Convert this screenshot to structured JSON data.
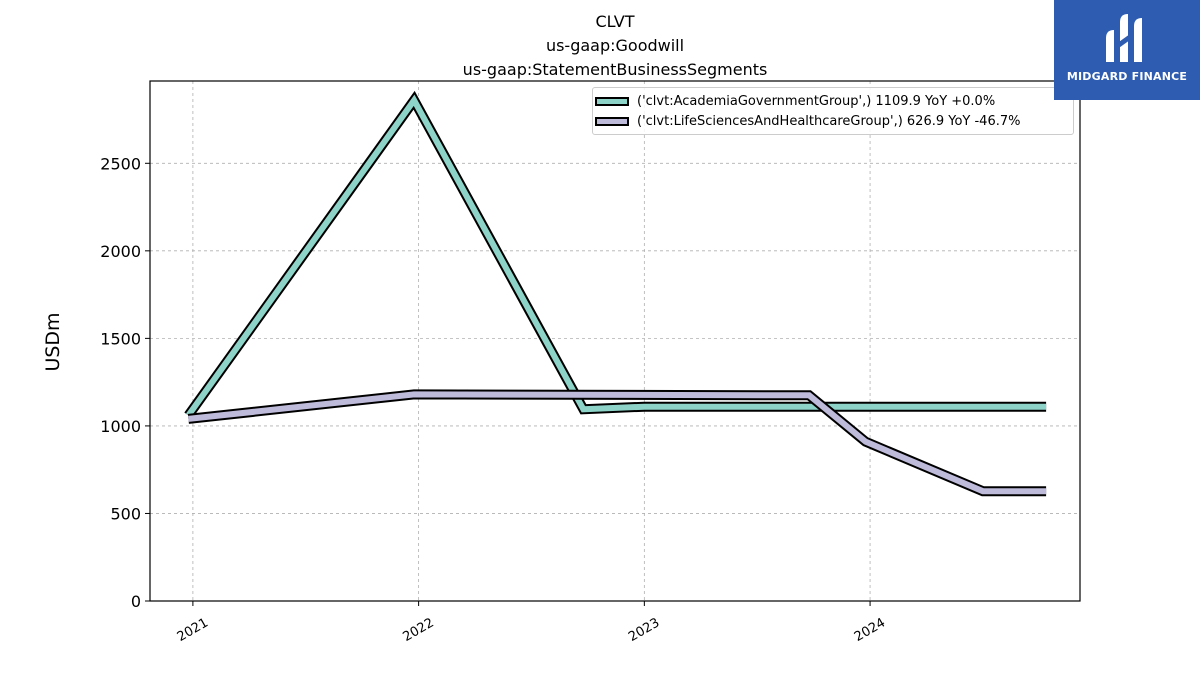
{
  "header": {
    "title_line1": "CLVT",
    "title_line2": "us-gaap:Goodwill",
    "title_line3": "us-gaap:StatementBusinessSegments"
  },
  "logo": {
    "text": "MIDGARD FINANCE",
    "color": "#2d5cb0"
  },
  "chart_data": {
    "type": "line",
    "title": "CLVT\nus-gaap:Goodwill\nus-gaap:StatementBusinessSegments",
    "ylabel": "USDm",
    "xlabel": "",
    "x_range": [
      2020.81,
      2024.93
    ],
    "ylim": [
      0,
      2970
    ],
    "y_ticks": [
      0,
      500,
      1000,
      1500,
      2000,
      2500
    ],
    "x_ticks": [
      2021,
      2022,
      2023,
      2024
    ],
    "x_tick_labels": [
      "2021",
      "2022",
      "2023",
      "2024"
    ],
    "grid": true,
    "legend_position": "top-right",
    "series": [
      {
        "name": "('clvt:AcademiaGovernmentGroup',) 1109.9 YoY +0.0%",
        "color": "#8dd3c7",
        "x": [
          2020.98,
          2021.98,
          2022.73,
          2023.0,
          2024.78
        ],
        "y": [
          1060,
          2860,
          1095,
          1110,
          1110
        ]
      },
      {
        "name": "('clvt:LifeSciencesAndHealthcareGroup',) 626.9 YoY -46.7%",
        "color": "#bebada",
        "x": [
          2020.98,
          2021.98,
          2023.73,
          2023.98,
          2024.5,
          2024.78
        ],
        "y": [
          1040,
          1180,
          1175,
          910,
          627,
          627
        ]
      }
    ]
  }
}
